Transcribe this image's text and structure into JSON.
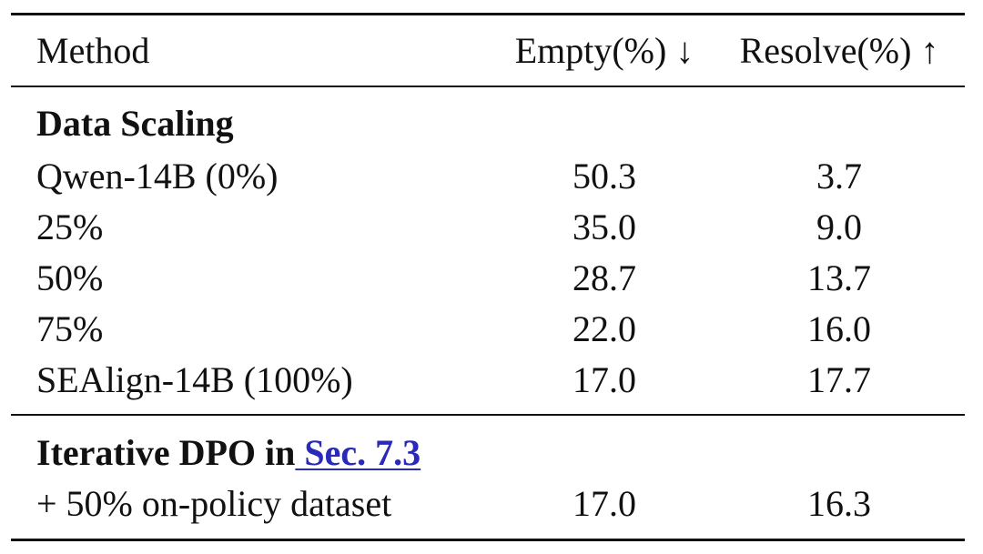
{
  "table": {
    "headers": {
      "method": "Method",
      "empty": "Empty(%) ↓",
      "resolve": "Resolve(%) ↑"
    },
    "sections": [
      {
        "title": "Data Scaling",
        "rows": [
          {
            "method": "Qwen-14B (0%)",
            "empty": "50.3",
            "resolve": "3.7"
          },
          {
            "method": "25%",
            "empty": "35.0",
            "resolve": "9.0"
          },
          {
            "method": "50%",
            "empty": "28.7",
            "resolve": "13.7"
          },
          {
            "method": "75%",
            "empty": "22.0",
            "resolve": "16.0"
          },
          {
            "method": "SEAlign-14B (100%)",
            "empty": "17.0",
            "resolve": "17.7"
          }
        ]
      },
      {
        "title": "Iterative DPO in",
        "title_link": " Sec. 7.3",
        "rows": [
          {
            "method": "+ 50% on-policy dataset",
            "empty": "17.0",
            "resolve": "16.3"
          }
        ]
      }
    ]
  }
}
